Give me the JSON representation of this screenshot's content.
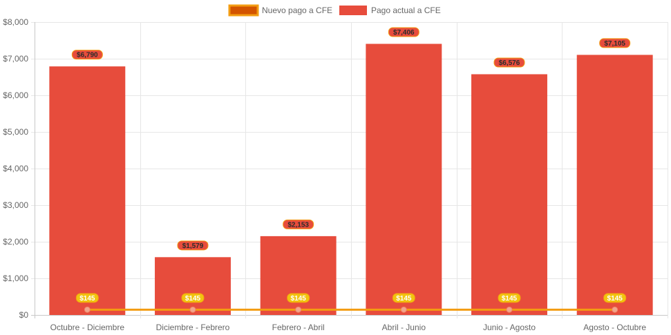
{
  "chart_data": {
    "type": "bar",
    "categories": [
      "Octubre - Diciembre",
      "Diciembre - Febrero",
      "Febrero - Abril",
      "Abril - Junio",
      "Junio - Agosto",
      "Agosto - Octubre"
    ],
    "series": [
      {
        "name": "Nuevo pago a CFE",
        "type": "line",
        "values": [
          145,
          145,
          145,
          145,
          145,
          145
        ],
        "labels": [
          "$145",
          "$145",
          "$145",
          "$145",
          "$145",
          "$145"
        ],
        "color": "#f39c12",
        "fill": "#d35400"
      },
      {
        "name": "Pago actual a CFE",
        "type": "bar",
        "values": [
          6790,
          1579,
          2153,
          7406,
          6576,
          7105
        ],
        "labels": [
          "$6,790",
          "$1,579",
          "$2,153",
          "$7,406",
          "$6,576",
          "$7,105"
        ],
        "color": "#e74c3c"
      }
    ],
    "yticks": [
      "$0",
      "$1,000",
      "$2,000",
      "$3,000",
      "$4,000",
      "$5,000",
      "$6,000",
      "$7,000",
      "$8,000"
    ],
    "ylim": [
      0,
      8000
    ],
    "grid": true,
    "legend": "top"
  }
}
